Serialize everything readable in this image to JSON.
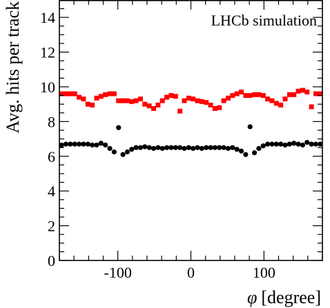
{
  "chart_data": {
    "type": "scatter",
    "annotation": "LHCb simulation",
    "xlabel_symbol": "φ",
    "xlabel_unit": "[degree]",
    "ylabel": "Avg. hits per track",
    "xlim": [
      -180,
      180
    ],
    "ylim": [
      0,
      15
    ],
    "x_ticks": [
      -100,
      0,
      100
    ],
    "y_ticks": [
      0,
      2,
      4,
      6,
      8,
      10,
      12,
      14
    ],
    "grid": false,
    "colors": {
      "series_red": "#ff0000",
      "series_black": "#000000"
    },
    "series": [
      {
        "marker": "square",
        "color": "#ff0000",
        "x": [
          -177,
          -171,
          -165,
          -159,
          -153,
          -147,
          -141,
          -135,
          -129,
          -123,
          -117,
          -111,
          -105,
          -99,
          -93,
          -87,
          -81,
          -75,
          -69,
          -63,
          -57,
          -51,
          -45,
          -39,
          -33,
          -27,
          -21,
          -15,
          -9,
          -3,
          3,
          9,
          15,
          21,
          27,
          33,
          39,
          45,
          51,
          57,
          63,
          69,
          75,
          81,
          87,
          93,
          99,
          105,
          111,
          117,
          123,
          129,
          135,
          141,
          147,
          153,
          159,
          165,
          171,
          177
        ],
        "y": [
          9.6,
          9.6,
          9.6,
          9.6,
          9.4,
          9.3,
          9.0,
          8.95,
          9.35,
          9.45,
          9.55,
          9.6,
          9.6,
          9.2,
          9.2,
          9.2,
          9.15,
          9.2,
          9.3,
          9.0,
          8.9,
          8.75,
          8.95,
          9.2,
          9.4,
          9.5,
          9.45,
          8.6,
          9.2,
          9.35,
          9.3,
          9.2,
          9.15,
          9.1,
          8.95,
          8.75,
          8.8,
          9.2,
          9.35,
          9.5,
          9.6,
          9.7,
          9.5,
          9.5,
          9.55,
          9.55,
          9.5,
          9.3,
          9.2,
          9.05,
          8.95,
          9.3,
          9.55,
          9.55,
          9.75,
          9.8,
          9.7,
          8.85,
          9.6,
          9.6
        ]
      },
      {
        "marker": "circle",
        "color": "#000000",
        "x": [
          -177,
          -171,
          -165,
          -159,
          -153,
          -147,
          -141,
          -135,
          -129,
          -123,
          -117,
          -111,
          -105,
          -99,
          -93,
          -87,
          -81,
          -75,
          -69,
          -63,
          -57,
          -51,
          -45,
          -39,
          -33,
          -27,
          -21,
          -15,
          -9,
          -3,
          3,
          9,
          15,
          21,
          27,
          33,
          39,
          45,
          51,
          57,
          63,
          69,
          75,
          81,
          87,
          93,
          99,
          105,
          111,
          117,
          123,
          129,
          135,
          141,
          147,
          153,
          159,
          165,
          171,
          177
        ],
        "y": [
          6.65,
          6.7,
          6.7,
          6.7,
          6.7,
          6.7,
          6.7,
          6.65,
          6.65,
          6.75,
          6.65,
          6.45,
          6.25,
          7.65,
          6.1,
          6.25,
          6.4,
          6.5,
          6.5,
          6.55,
          6.5,
          6.45,
          6.5,
          6.45,
          6.5,
          6.5,
          6.5,
          6.5,
          6.45,
          6.5,
          6.45,
          6.5,
          6.45,
          6.5,
          6.5,
          6.5,
          6.5,
          6.5,
          6.45,
          6.5,
          6.4,
          6.3,
          6.1,
          7.7,
          6.2,
          6.45,
          6.6,
          6.7,
          6.7,
          6.7,
          6.7,
          6.65,
          6.7,
          6.75,
          6.7,
          6.65,
          6.8,
          6.7,
          6.7,
          6.7
        ]
      }
    ]
  }
}
